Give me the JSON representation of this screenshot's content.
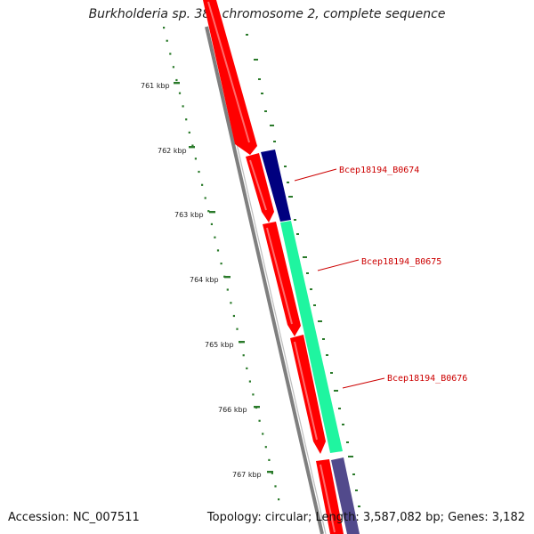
{
  "title": "Burkholderia sp. 383 chromosome 2, complete sequence",
  "accession": "Accession: NC_007511",
  "topology": "Topology: circular; Length: 3,587,082 bp; Genes: 3,182",
  "ticks": [
    "761 kbp",
    "762 kbp",
    "763 kbp",
    "764 kbp",
    "765 kbp",
    "766 kbp",
    "767 kbp"
  ],
  "genes": [
    {
      "label": "Bcep18194_B0674",
      "color": "#00007f"
    },
    {
      "label": "Bcep18194_B0675",
      "color": "#1ff5a0"
    },
    {
      "label": "Bcep18194_B0676",
      "color": "#524a8c"
    }
  ],
  "colors": {
    "cds": "#ff0000",
    "backbone": "#808080",
    "ticks": "#006400",
    "label": "#cc0000"
  }
}
